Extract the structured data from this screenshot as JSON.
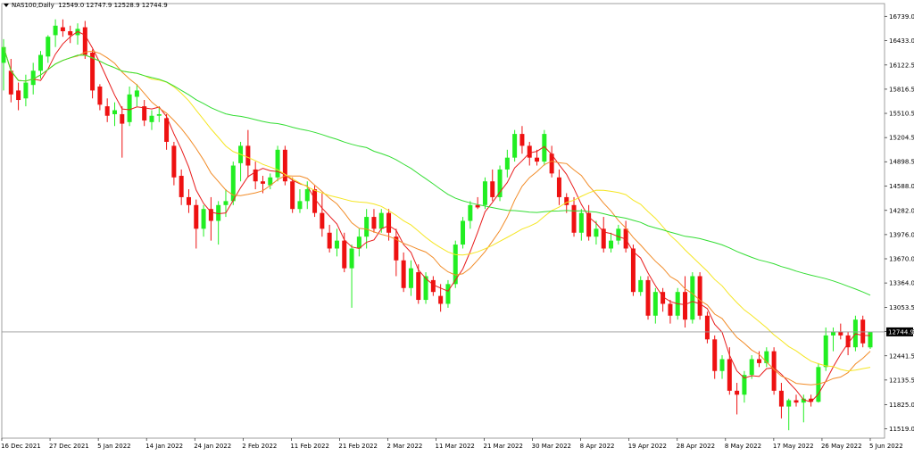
{
  "header": {
    "symbol": "NAS100,Daily",
    "ohlc": "12549.0 12747.9 12528.9 12744.9"
  },
  "current_price_label": "12744.9",
  "colors": {
    "bull": "#22ee22",
    "bear": "#ee1111",
    "ma_red": "#e81c1c",
    "ma_orange": "#f28c28",
    "ma_yellow": "#f5e623",
    "ma_green": "#33dd33",
    "grid": "#c8c8c8"
  },
  "chart_data": {
    "type": "candlestick",
    "y_ticks": [
      "16739.0",
      "16433.0",
      "16122.5",
      "15816.5",
      "15510.5",
      "15204.5",
      "14898.5",
      "14588.0",
      "14282.0",
      "13976.0",
      "13670.0",
      "13364.0",
      "13053.5",
      "12747.5",
      "12441.5",
      "12135.5",
      "11825.0",
      "11519.0"
    ],
    "x_ticks": [
      "16 Dec 2021",
      "27 Dec 2021",
      "5 Jan 2022",
      "14 Jan 2022",
      "24 Jan 2022",
      "2 Feb 2022",
      "11 Feb 2022",
      "21 Feb 2022",
      "2 Mar 2022",
      "11 Mar 2022",
      "21 Mar 2022",
      "30 Mar 2022",
      "8 Apr 2022",
      "19 Apr 2022",
      "28 Apr 2022",
      "8 May 2022",
      "17 May 2022",
      "26 May 2022",
      "5 Jun 2022"
    ],
    "ylim": [
      11400,
      16900
    ],
    "current_price": 12744.9,
    "candles": [
      {
        "o": 16150,
        "h": 16450,
        "l": 15800,
        "c": 16350
      },
      {
        "o": 16050,
        "h": 16200,
        "l": 15650,
        "c": 15750
      },
      {
        "o": 15800,
        "h": 15900,
        "l": 15550,
        "c": 15680
      },
      {
        "o": 15700,
        "h": 16000,
        "l": 15600,
        "c": 15900
      },
      {
        "o": 15870,
        "h": 16150,
        "l": 15750,
        "c": 16050
      },
      {
        "o": 16050,
        "h": 16300,
        "l": 15950,
        "c": 16250
      },
      {
        "o": 16230,
        "h": 16500,
        "l": 16150,
        "c": 16480
      },
      {
        "o": 16500,
        "h": 16700,
        "l": 16350,
        "c": 16620
      },
      {
        "o": 16600,
        "h": 16700,
        "l": 16480,
        "c": 16550
      },
      {
        "o": 16550,
        "h": 16620,
        "l": 16400,
        "c": 16500
      },
      {
        "o": 16500,
        "h": 16650,
        "l": 16380,
        "c": 16580
      },
      {
        "o": 16600,
        "h": 16680,
        "l": 16200,
        "c": 16250
      },
      {
        "o": 16280,
        "h": 16320,
        "l": 15700,
        "c": 15800
      },
      {
        "o": 15850,
        "h": 15880,
        "l": 15550,
        "c": 15620
      },
      {
        "o": 15600,
        "h": 15700,
        "l": 15400,
        "c": 15480
      },
      {
        "o": 15500,
        "h": 15650,
        "l": 15350,
        "c": 15550
      },
      {
        "o": 15500,
        "h": 15600,
        "l": 14950,
        "c": 15380
      },
      {
        "o": 15400,
        "h": 15850,
        "l": 15350,
        "c": 15750
      },
      {
        "o": 15720,
        "h": 15880,
        "l": 15600,
        "c": 15800
      },
      {
        "o": 15600,
        "h": 15680,
        "l": 15350,
        "c": 15420
      },
      {
        "o": 15400,
        "h": 15550,
        "l": 15300,
        "c": 15480
      },
      {
        "o": 15480,
        "h": 15600,
        "l": 15400,
        "c": 15500
      },
      {
        "o": 15450,
        "h": 15500,
        "l": 15050,
        "c": 15150
      },
      {
        "o": 15100,
        "h": 15150,
        "l": 14600,
        "c": 14700
      },
      {
        "o": 14720,
        "h": 14800,
        "l": 14350,
        "c": 14450
      },
      {
        "o": 14450,
        "h": 14550,
        "l": 14250,
        "c": 14350
      },
      {
        "o": 14350,
        "h": 14420,
        "l": 13800,
        "c": 14050
      },
      {
        "o": 14050,
        "h": 14350,
        "l": 13950,
        "c": 14300
      },
      {
        "o": 14300,
        "h": 14450,
        "l": 13900,
        "c": 14150
      },
      {
        "o": 14150,
        "h": 14400,
        "l": 13850,
        "c": 14350
      },
      {
        "o": 14350,
        "h": 14550,
        "l": 14200,
        "c": 14400
      },
      {
        "o": 14400,
        "h": 14900,
        "l": 14350,
        "c": 14850
      },
      {
        "o": 14880,
        "h": 15150,
        "l": 14650,
        "c": 15100
      },
      {
        "o": 15100,
        "h": 15300,
        "l": 14700,
        "c": 14850
      },
      {
        "o": 14800,
        "h": 14900,
        "l": 14550,
        "c": 14650
      },
      {
        "o": 14650,
        "h": 14720,
        "l": 14500,
        "c": 14620
      },
      {
        "o": 14600,
        "h": 14750,
        "l": 14550,
        "c": 14700
      },
      {
        "o": 14700,
        "h": 15100,
        "l": 14650,
        "c": 15050
      },
      {
        "o": 15050,
        "h": 15100,
        "l": 14600,
        "c": 14650
      },
      {
        "o": 14650,
        "h": 14700,
        "l": 14250,
        "c": 14300
      },
      {
        "o": 14300,
        "h": 14550,
        "l": 14250,
        "c": 14400
      },
      {
        "o": 14400,
        "h": 14650,
        "l": 14300,
        "c": 14550
      },
      {
        "o": 14550,
        "h": 14600,
        "l": 14200,
        "c": 14250
      },
      {
        "o": 14250,
        "h": 14500,
        "l": 13950,
        "c": 14050
      },
      {
        "o": 14000,
        "h": 14100,
        "l": 13750,
        "c": 13800
      },
      {
        "o": 13800,
        "h": 14050,
        "l": 13700,
        "c": 13900
      },
      {
        "o": 13900,
        "h": 14000,
        "l": 13500,
        "c": 13550
      },
      {
        "o": 13550,
        "h": 13850,
        "l": 13050,
        "c": 13800
      },
      {
        "o": 13800,
        "h": 14050,
        "l": 13700,
        "c": 13950
      },
      {
        "o": 13950,
        "h": 14300,
        "l": 13800,
        "c": 14200
      },
      {
        "o": 14200,
        "h": 14300,
        "l": 14000,
        "c": 14050
      },
      {
        "o": 14050,
        "h": 14300,
        "l": 14000,
        "c": 14250
      },
      {
        "o": 14250,
        "h": 14300,
        "l": 13900,
        "c": 14000
      },
      {
        "o": 13950,
        "h": 14050,
        "l": 13450,
        "c": 13650
      },
      {
        "o": 13650,
        "h": 13750,
        "l": 13250,
        "c": 13300
      },
      {
        "o": 13300,
        "h": 13650,
        "l": 13200,
        "c": 13550
      },
      {
        "o": 13500,
        "h": 13600,
        "l": 13100,
        "c": 13150
      },
      {
        "o": 13150,
        "h": 13500,
        "l": 13100,
        "c": 13450
      },
      {
        "o": 13400,
        "h": 13450,
        "l": 13200,
        "c": 13250
      },
      {
        "o": 13200,
        "h": 13350,
        "l": 13000,
        "c": 13100
      },
      {
        "o": 13100,
        "h": 13400,
        "l": 13050,
        "c": 13350
      },
      {
        "o": 13350,
        "h": 13900,
        "l": 13300,
        "c": 13850
      },
      {
        "o": 13850,
        "h": 14200,
        "l": 13800,
        "c": 14150
      },
      {
        "o": 14150,
        "h": 14400,
        "l": 14050,
        "c": 14350
      },
      {
        "o": 14350,
        "h": 14450,
        "l": 14300,
        "c": 14320
      },
      {
        "o": 14350,
        "h": 14700,
        "l": 14300,
        "c": 14650
      },
      {
        "o": 14650,
        "h": 14800,
        "l": 14400,
        "c": 14450
      },
      {
        "o": 14450,
        "h": 14850,
        "l": 14400,
        "c": 14800
      },
      {
        "o": 14800,
        "h": 15050,
        "l": 14700,
        "c": 14950
      },
      {
        "o": 14950,
        "h": 15300,
        "l": 14900,
        "c": 15250
      },
      {
        "o": 15250,
        "h": 15350,
        "l": 15000,
        "c": 15100
      },
      {
        "o": 15100,
        "h": 15150,
        "l": 14850,
        "c": 14950
      },
      {
        "o": 14950,
        "h": 15050,
        "l": 14850,
        "c": 14900
      },
      {
        "o": 14900,
        "h": 15300,
        "l": 14850,
        "c": 15250
      },
      {
        "o": 15000,
        "h": 15100,
        "l": 14700,
        "c": 14750
      },
      {
        "o": 14700,
        "h": 14800,
        "l": 14350,
        "c": 14450
      },
      {
        "o": 14450,
        "h": 14500,
        "l": 14250,
        "c": 14350
      },
      {
        "o": 14350,
        "h": 14450,
        "l": 13950,
        "c": 14000
      },
      {
        "o": 14000,
        "h": 14300,
        "l": 13900,
        "c": 14250
      },
      {
        "o": 14250,
        "h": 14350,
        "l": 13900,
        "c": 13950
      },
      {
        "o": 13950,
        "h": 14150,
        "l": 13850,
        "c": 14050
      },
      {
        "o": 14050,
        "h": 14200,
        "l": 13750,
        "c": 13800
      },
      {
        "o": 13800,
        "h": 14000,
        "l": 13750,
        "c": 13900
      },
      {
        "o": 13900,
        "h": 14100,
        "l": 13850,
        "c": 14050
      },
      {
        "o": 14050,
        "h": 14150,
        "l": 13750,
        "c": 13800
      },
      {
        "o": 13800,
        "h": 13850,
        "l": 13200,
        "c": 13250
      },
      {
        "o": 13250,
        "h": 13450,
        "l": 13200,
        "c": 13400
      },
      {
        "o": 13400,
        "h": 13450,
        "l": 12900,
        "c": 12950
      },
      {
        "o": 12950,
        "h": 13300,
        "l": 12850,
        "c": 13250
      },
      {
        "o": 13250,
        "h": 13300,
        "l": 13000,
        "c": 13100
      },
      {
        "o": 13100,
        "h": 13150,
        "l": 12850,
        "c": 12950
      },
      {
        "o": 12950,
        "h": 13300,
        "l": 12900,
        "c": 13250
      },
      {
        "o": 13250,
        "h": 13450,
        "l": 12800,
        "c": 12900
      },
      {
        "o": 12900,
        "h": 13500,
        "l": 12850,
        "c": 13450
      },
      {
        "o": 13450,
        "h": 13500,
        "l": 12900,
        "c": 12950
      },
      {
        "o": 12950,
        "h": 13000,
        "l": 12600,
        "c": 12650
      },
      {
        "o": 12650,
        "h": 12700,
        "l": 12150,
        "c": 12250
      },
      {
        "o": 12250,
        "h": 12450,
        "l": 12150,
        "c": 12400
      },
      {
        "o": 12400,
        "h": 12550,
        "l": 11950,
        "c": 12000
      },
      {
        "o": 12000,
        "h": 12100,
        "l": 11700,
        "c": 11950
      },
      {
        "o": 11950,
        "h": 12250,
        "l": 11850,
        "c": 12200
      },
      {
        "o": 12200,
        "h": 12450,
        "l": 12150,
        "c": 12400
      },
      {
        "o": 12400,
        "h": 12500,
        "l": 12300,
        "c": 12350
      },
      {
        "o": 12350,
        "h": 12550,
        "l": 12300,
        "c": 12500
      },
      {
        "o": 12500,
        "h": 12550,
        "l": 11950,
        "c": 12000
      },
      {
        "o": 12000,
        "h": 12100,
        "l": 11650,
        "c": 11800
      },
      {
        "o": 11800,
        "h": 11900,
        "l": 11500,
        "c": 11880
      },
      {
        "o": 11880,
        "h": 11950,
        "l": 11800,
        "c": 11850
      },
      {
        "o": 11850,
        "h": 11950,
        "l": 11600,
        "c": 11900
      },
      {
        "o": 11900,
        "h": 11950,
        "l": 11800,
        "c": 11860
      },
      {
        "o": 11860,
        "h": 12350,
        "l": 11850,
        "c": 12300
      },
      {
        "o": 12300,
        "h": 12800,
        "l": 12250,
        "c": 12700
      },
      {
        "o": 12700,
        "h": 12800,
        "l": 12500,
        "c": 12750
      },
      {
        "o": 12750,
        "h": 12850,
        "l": 12650,
        "c": 12700
      },
      {
        "o": 12700,
        "h": 12750,
        "l": 12450,
        "c": 12550
      },
      {
        "o": 12550,
        "h": 12950,
        "l": 12500,
        "c": 12900
      },
      {
        "o": 12900,
        "h": 12950,
        "l": 12550,
        "c": 12600
      },
      {
        "o": 12549,
        "h": 12748,
        "l": 12529,
        "c": 12745
      }
    ]
  }
}
